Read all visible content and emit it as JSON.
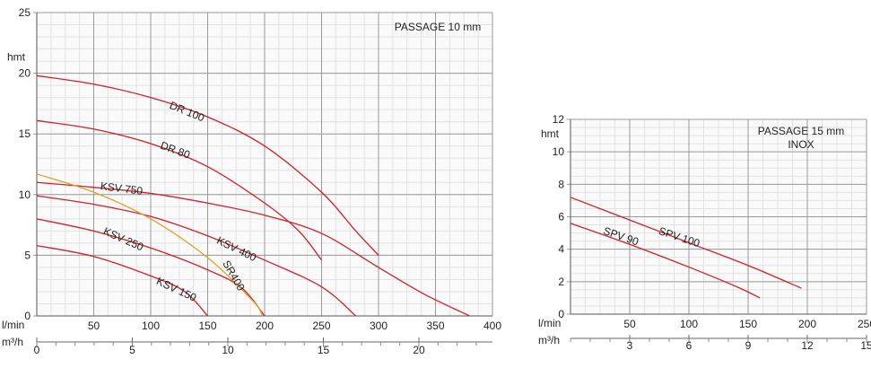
{
  "chart_data": [
    {
      "type": "line",
      "annotation": "PASSAGE 10 mm",
      "ylabel": "hmt",
      "xlabel": "l/min",
      "x2label": "m³/h",
      "xlim": [
        0,
        400
      ],
      "ylim": [
        0,
        25
      ],
      "x_ticks": [
        "50",
        "100",
        "150",
        "200",
        "250",
        "300",
        "350",
        "400"
      ],
      "x_tick_values": [
        50,
        100,
        150,
        200,
        250,
        300,
        350,
        400
      ],
      "x2_ticks": [
        "0",
        "5",
        "10",
        "15",
        "20"
      ],
      "x2_tick_values": [
        0,
        5,
        10,
        15,
        20
      ],
      "y_ticks": [
        "0",
        "5",
        "10",
        "15",
        "20",
        "25"
      ],
      "y_tick_values": [
        0,
        5,
        10,
        15,
        20,
        25
      ],
      "grid": true,
      "series": [
        {
          "name": "DR 100",
          "color": "#d0202a",
          "points": [
            [
              0,
              19.8
            ],
            [
              50,
              19.1
            ],
            [
              100,
              18.0
            ],
            [
              150,
              16.4
            ],
            [
              200,
              14.0
            ],
            [
              250,
              10.2
            ],
            [
              280,
              7.0
            ],
            [
              300,
              5.0
            ]
          ]
        },
        {
          "name": "DR 80",
          "color": "#d0202a",
          "points": [
            [
              0,
              16.1
            ],
            [
              50,
              15.4
            ],
            [
              100,
              14.2
            ],
            [
              150,
              12.3
            ],
            [
              200,
              9.3
            ],
            [
              230,
              7.0
            ],
            [
              250,
              4.6
            ]
          ]
        },
        {
          "name": "KSV 750",
          "color": "#d0202a",
          "points": [
            [
              0,
              11.0
            ],
            [
              50,
              10.6
            ],
            [
              100,
              10.1
            ],
            [
              150,
              9.3
            ],
            [
              200,
              8.3
            ],
            [
              250,
              6.8
            ],
            [
              300,
              4.0
            ],
            [
              340,
              1.8
            ],
            [
              380,
              0
            ]
          ]
        },
        {
          "name": "KSV 400",
          "color": "#d0202a",
          "points": [
            [
              0,
              9.9
            ],
            [
              50,
              9.2
            ],
            [
              100,
              8.2
            ],
            [
              150,
              6.6
            ],
            [
              200,
              4.6
            ],
            [
              250,
              2.4
            ],
            [
              280,
              0
            ]
          ]
        },
        {
          "name": "KSV 250",
          "color": "#d0202a",
          "points": [
            [
              0,
              8.0
            ],
            [
              50,
              7.0
            ],
            [
              100,
              5.6
            ],
            [
              150,
              3.8
            ],
            [
              180,
              2.3
            ],
            [
              200,
              0
            ]
          ]
        },
        {
          "name": "KSV 150",
          "color": "#d0202a",
          "points": [
            [
              0,
              5.8
            ],
            [
              50,
              4.9
            ],
            [
              100,
              3.3
            ],
            [
              130,
              2.0
            ],
            [
              150,
              0
            ]
          ]
        },
        {
          "name": "SR400",
          "color": "#e0a02a",
          "points": [
            [
              0,
              11.7
            ],
            [
              50,
              10.2
            ],
            [
              100,
              8.0
            ],
            [
              150,
              4.8
            ],
            [
              190,
              1.2
            ],
            [
              198,
              0
            ]
          ]
        }
      ]
    },
    {
      "type": "line",
      "annotation": [
        "PASSAGE  15 mm",
        "INOX"
      ],
      "ylabel": "hmt",
      "xlabel": "l/min",
      "x2label": "m³/h",
      "xlim": [
        0,
        250
      ],
      "ylim": [
        0,
        12
      ],
      "x_ticks": [
        "50",
        "100",
        "150",
        "200",
        "250"
      ],
      "x_tick_values": [
        50,
        100,
        150,
        200,
        250
      ],
      "x2_ticks": [
        "3",
        "6",
        "9",
        "12",
        "15"
      ],
      "x2_tick_values": [
        3,
        6,
        9,
        12,
        15
      ],
      "y_ticks": [
        "0",
        "2",
        "4",
        "6",
        "8",
        "10",
        "12"
      ],
      "y_tick_values": [
        0,
        2,
        4,
        6,
        8,
        10,
        12
      ],
      "grid": true,
      "series": [
        {
          "name": "SPV 100",
          "color": "#d0202a",
          "points": [
            [
              0,
              7.2
            ],
            [
              50,
              5.8
            ],
            [
              100,
              4.4
            ],
            [
              150,
              3.0
            ],
            [
              195,
              1.6
            ]
          ]
        },
        {
          "name": "SPV 90",
          "color": "#d0202a",
          "points": [
            [
              0,
              5.6
            ],
            [
              50,
              4.3
            ],
            [
              100,
              2.9
            ],
            [
              140,
              1.7
            ],
            [
              160,
              1.0
            ]
          ]
        }
      ]
    }
  ]
}
